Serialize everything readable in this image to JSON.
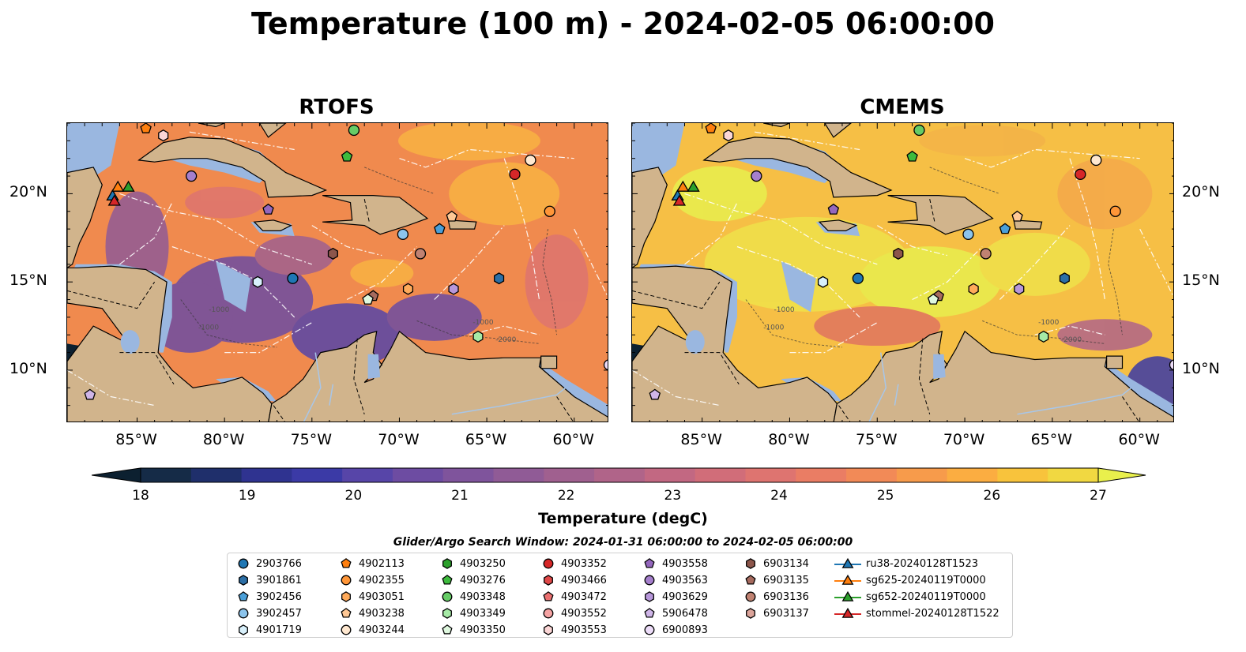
{
  "title": "Temperature (100 m) - 2024-02-05 06:00:00",
  "panels": [
    {
      "title": "RTOFS",
      "scheme": "rtofs"
    },
    {
      "title": "CMEMS",
      "scheme": "cmems"
    }
  ],
  "lon_ticks": [
    "85°W",
    "80°W",
    "75°W",
    "70°W",
    "65°W",
    "60°W"
  ],
  "lat_ticks": [
    "20°N",
    "15°N",
    "10°N"
  ],
  "colorbar": {
    "ticks": [
      "18",
      "19",
      "20",
      "21",
      "22",
      "23",
      "24",
      "25",
      "26",
      "27"
    ],
    "label": "Temperature (degC)",
    "colors": [
      "#0c2030",
      "#152b47",
      "#1f2f6b",
      "#2f3390",
      "#3b3aa6",
      "#5745a8",
      "#6d4ca2",
      "#7f549c",
      "#905b96",
      "#a0608f",
      "#b06489",
      "#c26882",
      "#d16d79",
      "#de7470",
      "#ea7d64",
      "#f28a57",
      "#f79b4b",
      "#fbad41",
      "#f8c33c",
      "#f1d841",
      "#e9f04c"
    ],
    "range": [
      18,
      27
    ]
  },
  "depth_contours": [
    "-1000",
    "-1000",
    "-2000",
    "-1000"
  ],
  "search_window": "Glider/Argo Search Window: 2024-01-31 06:00:00 to 2024-02-05 06:00:00",
  "legend": {
    "columns": [
      [
        {
          "label": "2903766",
          "marker": "circle",
          "color": "#1f77b4"
        },
        {
          "label": "3901861",
          "marker": "hexagon",
          "color": "#2c6fa6"
        },
        {
          "label": "3902456",
          "marker": "pentagon",
          "color": "#4a9fd8"
        },
        {
          "label": "3902457",
          "marker": "circle",
          "color": "#8cc4ec"
        },
        {
          "label": "4901719",
          "marker": "hexagon",
          "color": "#d8f0fb"
        }
      ],
      [
        {
          "label": "4902113",
          "marker": "pentagon",
          "color": "#ff7f0e"
        },
        {
          "label": "4902355",
          "marker": "circle",
          "color": "#ff9638"
        },
        {
          "label": "4903051",
          "marker": "hexagon",
          "color": "#ffaa5a"
        },
        {
          "label": "4903238",
          "marker": "pentagon",
          "color": "#ffc895"
        },
        {
          "label": "4903244",
          "marker": "circle",
          "color": "#ffe8d0"
        }
      ],
      [
        {
          "label": "4903250",
          "marker": "hexagon",
          "color": "#2ca02c"
        },
        {
          "label": "4903276",
          "marker": "pentagon",
          "color": "#3dbb3d"
        },
        {
          "label": "4903348",
          "marker": "circle",
          "color": "#66cc66"
        },
        {
          "label": "4903349",
          "marker": "hexagon",
          "color": "#a6eaa6"
        },
        {
          "label": "4903350",
          "marker": "pentagon",
          "color": "#dff8df"
        }
      ],
      [
        {
          "label": "4903352",
          "marker": "circle",
          "color": "#d62728"
        },
        {
          "label": "4903466",
          "marker": "hexagon",
          "color": "#e04848"
        },
        {
          "label": "4903472",
          "marker": "pentagon",
          "color": "#eb7070"
        },
        {
          "label": "4903552",
          "marker": "circle",
          "color": "#f5a3a3"
        },
        {
          "label": "4903553",
          "marker": "hexagon",
          "color": "#fbd6d6"
        }
      ],
      [
        {
          "label": "4903558",
          "marker": "pentagon",
          "color": "#9467bd"
        },
        {
          "label": "4903563",
          "marker": "circle",
          "color": "#a57fcc"
        },
        {
          "label": "4903629",
          "marker": "hexagon",
          "color": "#b797da"
        },
        {
          "label": "5906478",
          "marker": "pentagon",
          "color": "#cfb5e8"
        },
        {
          "label": "6900893",
          "marker": "circle",
          "color": "#ecdcf8"
        }
      ],
      [
        {
          "label": "6903134",
          "marker": "hexagon",
          "color": "#8c564b"
        },
        {
          "label": "6903135",
          "marker": "pentagon",
          "color": "#a66a5e"
        },
        {
          "label": "6903136",
          "marker": "circle",
          "color": "#c08272"
        },
        {
          "label": "6903137",
          "marker": "hexagon",
          "color": "#dba49a"
        }
      ],
      [
        {
          "label": "ru38-20240128T1523",
          "marker": "triangle",
          "color": "#1f77b4"
        },
        {
          "label": "sg625-20240119T0000",
          "marker": "triangle",
          "color": "#ff7f0e"
        },
        {
          "label": "sg652-20240119T0000",
          "marker": "triangle",
          "color": "#2ca02c"
        },
        {
          "label": "stommel-20240128T1522",
          "marker": "triangle",
          "color": "#d62728"
        }
      ]
    ]
  },
  "floats": [
    {
      "id": "4902113",
      "lon": -84.5,
      "lat": 23.7,
      "marker": "pentagon",
      "color": "#ff7f0e"
    },
    {
      "id": "4903553",
      "lon": -83.5,
      "lat": 23.3,
      "marker": "hexagon",
      "color": "#fbd6d6"
    },
    {
      "id": "4903348",
      "lon": -72.6,
      "lat": 23.6,
      "marker": "circle",
      "color": "#66cc66"
    },
    {
      "id": "4903276",
      "lon": -73.0,
      "lat": 22.1,
      "marker": "pentagon",
      "color": "#3dbb3d"
    },
    {
      "id": "4903563",
      "lon": -81.9,
      "lat": 21.0,
      "marker": "circle",
      "color": "#a57fcc"
    },
    {
      "id": "4903244",
      "lon": -62.5,
      "lat": 21.9,
      "marker": "circle",
      "color": "#ffe8d0"
    },
    {
      "id": "4903352",
      "lon": -63.4,
      "lat": 21.1,
      "marker": "circle",
      "color": "#d62728"
    },
    {
      "id": "4902355",
      "lon": -61.4,
      "lat": 19.0,
      "marker": "circle",
      "color": "#ff9638"
    },
    {
      "id": "4903558",
      "lon": -77.5,
      "lat": 19.1,
      "marker": "pentagon",
      "color": "#9467bd"
    },
    {
      "id": "4903238",
      "lon": -67.0,
      "lat": 18.7,
      "marker": "pentagon",
      "color": "#ffc895"
    },
    {
      "id": "3902456",
      "lon": -67.7,
      "lat": 18.0,
      "marker": "pentagon",
      "color": "#4a9fd8"
    },
    {
      "id": "3902457",
      "lon": -69.8,
      "lat": 17.7,
      "marker": "circle",
      "color": "#8cc4ec"
    },
    {
      "id": "6903134",
      "lon": -73.8,
      "lat": 16.6,
      "marker": "hexagon",
      "color": "#8c564b"
    },
    {
      "id": "6903136",
      "lon": -68.8,
      "lat": 16.6,
      "marker": "circle",
      "color": "#c08272"
    },
    {
      "id": "2903766",
      "lon": -76.1,
      "lat": 15.2,
      "marker": "circle",
      "color": "#1f77b4"
    },
    {
      "id": "4901719",
      "lon": -78.1,
      "lat": 15.0,
      "marker": "hexagon",
      "color": "#d8f0fb"
    },
    {
      "id": "4903051",
      "lon": -69.5,
      "lat": 14.6,
      "marker": "hexagon",
      "color": "#ffaa5a"
    },
    {
      "id": "4903629",
      "lon": -66.9,
      "lat": 14.6,
      "marker": "hexagon",
      "color": "#b797da"
    },
    {
      "id": "3901861",
      "lon": -64.3,
      "lat": 15.2,
      "marker": "hexagon",
      "color": "#2c6fa6"
    },
    {
      "id": "6903135",
      "lon": -71.5,
      "lat": 14.2,
      "marker": "pentagon",
      "color": "#a66a5e"
    },
    {
      "id": "4903350",
      "lon": -71.8,
      "lat": 14.0,
      "marker": "pentagon",
      "color": "#dff8df"
    },
    {
      "id": "4903349",
      "lon": -65.5,
      "lat": 11.9,
      "marker": "hexagon",
      "color": "#a6eaa6"
    },
    {
      "id": "6900893",
      "lon": -58.0,
      "lat": 10.3,
      "marker": "circle",
      "color": "#ecdcf8"
    },
    {
      "id": "5906478",
      "lon": -87.7,
      "lat": 8.6,
      "marker": "pentagon",
      "color": "#cfb5e8"
    }
  ],
  "gliders": [
    {
      "id": "ru38-20240128T1523",
      "lon": -86.4,
      "lat": 19.9,
      "color": "#1f77b4"
    },
    {
      "id": "sg625-20240119T0000",
      "lon": -86.1,
      "lat": 20.4,
      "color": "#ff7f0e"
    },
    {
      "id": "sg652-20240119T0000",
      "lon": -85.5,
      "lat": 20.4,
      "color": "#2ca02c"
    },
    {
      "id": "stommel-20240128T1522",
      "lon": -86.3,
      "lat": 19.6,
      "color": "#d62728"
    }
  ]
}
